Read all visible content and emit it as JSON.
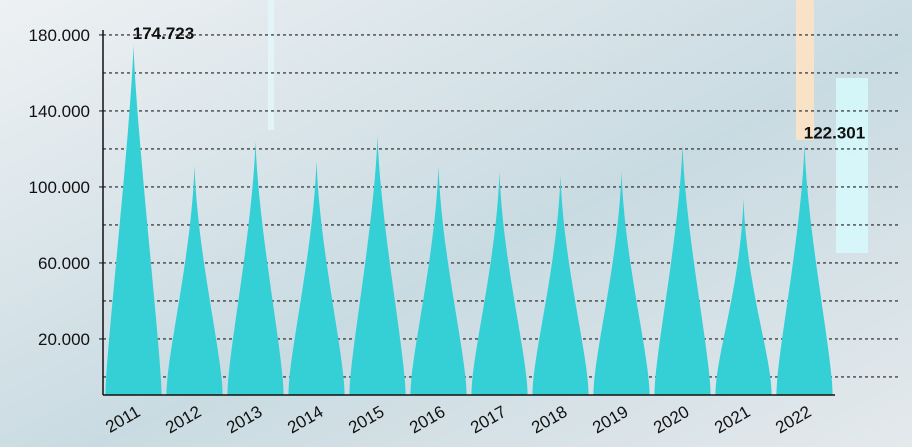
{
  "chart_data": {
    "type": "spike",
    "categories": [
      "2011",
      "2012",
      "2013",
      "2014",
      "2015",
      "2016",
      "2017",
      "2018",
      "2019",
      "2020",
      "2021",
      "2022"
    ],
    "values": [
      174723,
      111000,
      124000,
      114000,
      127000,
      111000,
      108000,
      106000,
      108000,
      122000,
      94000,
      122301
    ],
    "value_labels": [
      "174.723",
      null,
      null,
      null,
      null,
      null,
      null,
      null,
      null,
      null,
      null,
      "122.301"
    ],
    "color": "#35cfd6",
    "ylim": [
      -9500,
      182600
    ],
    "yticks": [
      {
        "value": 20000,
        "label": "20.000"
      },
      {
        "value": 60000,
        "label": "60.000"
      },
      {
        "value": 100000,
        "label": "100.000"
      },
      {
        "value": 140000,
        "label": "140.000"
      },
      {
        "value": 180000,
        "label": "180.000"
      }
    ],
    "grid_step": 20000,
    "grid": true
  }
}
